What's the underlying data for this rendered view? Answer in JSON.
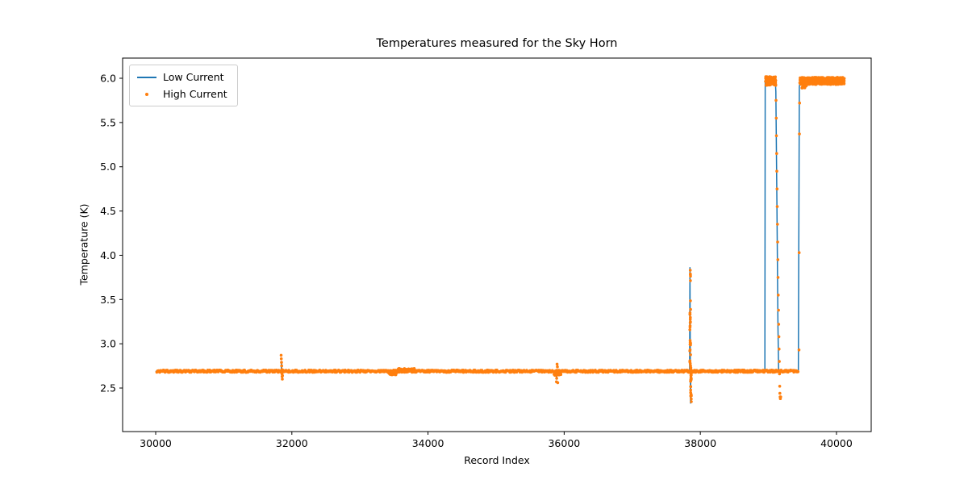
{
  "chart_data": {
    "type": "mixed",
    "title": "Temperatures measured for the Sky Horn",
    "xlabel": "Record Index",
    "ylabel": "Temperature (K)",
    "xlim": [
      29514,
      40510
    ],
    "ylim": [
      2.008,
      6.228
    ],
    "xticks": [
      30000,
      32000,
      34000,
      36000,
      38000,
      40000
    ],
    "yticks": [
      2.5,
      3.0,
      3.5,
      4.0,
      4.5,
      5.0,
      5.5,
      6.0
    ],
    "grid": false,
    "legend_position": "upper left",
    "series": [
      {
        "name": "Low Current",
        "type": "line",
        "color": "#1f77b4",
        "linewidth": 1.5,
        "points": [
          [
            30005,
            2.69
          ],
          [
            31845,
            2.69
          ],
          [
            31848,
            2.78
          ],
          [
            31851,
            2.62
          ],
          [
            31855,
            2.69
          ],
          [
            35884,
            2.69
          ],
          [
            35889,
            2.6
          ],
          [
            35894,
            2.69
          ],
          [
            37843,
            2.69
          ],
          [
            37848,
            3.86
          ],
          [
            37852,
            2.86
          ],
          [
            37856,
            2.33
          ],
          [
            37861,
            2.69
          ],
          [
            38948,
            2.69
          ],
          [
            38953,
            5.98
          ],
          [
            39100,
            6.0
          ],
          [
            39110,
            5.85
          ],
          [
            39125,
            4.6
          ],
          [
            39140,
            3.2
          ],
          [
            39150,
            2.72
          ],
          [
            39156,
            2.69
          ],
          [
            39440,
            2.69
          ],
          [
            39449,
            4.8
          ],
          [
            39454,
            5.9
          ],
          [
            39462,
            5.96
          ],
          [
            40110,
            5.97
          ]
        ]
      },
      {
        "name": "High Current",
        "type": "scatter",
        "color": "#ff7f0e",
        "marker": "dot",
        "marker_radius": 1.8,
        "bands_note": "each band = [x_start, x_end, y_center, y_jitter, x_step]",
        "bands": [
          [
            30020,
            39440,
            2.69,
            0.013,
            7
          ],
          [
            33420,
            33540,
            2.665,
            0.018,
            5
          ],
          [
            33560,
            33820,
            2.705,
            0.016,
            6
          ],
          [
            35850,
            35950,
            2.67,
            0.028,
            4
          ],
          [
            37846,
            37858,
            3.3,
            0.58,
            0.4
          ],
          [
            37857,
            37868,
            2.5,
            0.24,
            0.5
          ],
          [
            38958,
            39108,
            5.97,
            0.05,
            1.2
          ],
          [
            39462,
            40115,
            5.97,
            0.04,
            1.3
          ],
          [
            39470,
            39560,
            5.95,
            0.06,
            2
          ]
        ],
        "points": [
          [
            31842,
            2.87
          ],
          [
            31845,
            2.83
          ],
          [
            31848,
            2.79
          ],
          [
            31851,
            2.75
          ],
          [
            31853,
            2.71
          ],
          [
            31855,
            2.66
          ],
          [
            31857,
            2.63
          ],
          [
            31860,
            2.6
          ],
          [
            31863,
            2.64
          ],
          [
            35886,
            2.57
          ],
          [
            35890,
            2.61
          ],
          [
            35896,
            2.77
          ],
          [
            35901,
            2.74
          ],
          [
            35906,
            2.56
          ],
          [
            39108,
            5.92
          ],
          [
            39112,
            5.75
          ],
          [
            39115,
            5.55
          ],
          [
            39118,
            5.35
          ],
          [
            39121,
            5.15
          ],
          [
            39124,
            4.95
          ],
          [
            39127,
            4.75
          ],
          [
            39130,
            4.55
          ],
          [
            39133,
            4.35
          ],
          [
            39136,
            4.15
          ],
          [
            39139,
            3.95
          ],
          [
            39142,
            3.75
          ],
          [
            39145,
            3.55
          ],
          [
            39148,
            3.38
          ],
          [
            39151,
            3.22
          ],
          [
            39154,
            3.08
          ],
          [
            39157,
            2.94
          ],
          [
            39160,
            2.8
          ],
          [
            39163,
            2.66
          ],
          [
            39166,
            2.52
          ],
          [
            39169,
            2.44
          ],
          [
            39172,
            2.4
          ],
          [
            39176,
            2.38
          ],
          [
            39180,
            2.4
          ],
          [
            39450,
            2.93
          ],
          [
            39452,
            4.03
          ],
          [
            39455,
            5.37
          ],
          [
            39458,
            5.72
          ]
        ]
      }
    ]
  }
}
